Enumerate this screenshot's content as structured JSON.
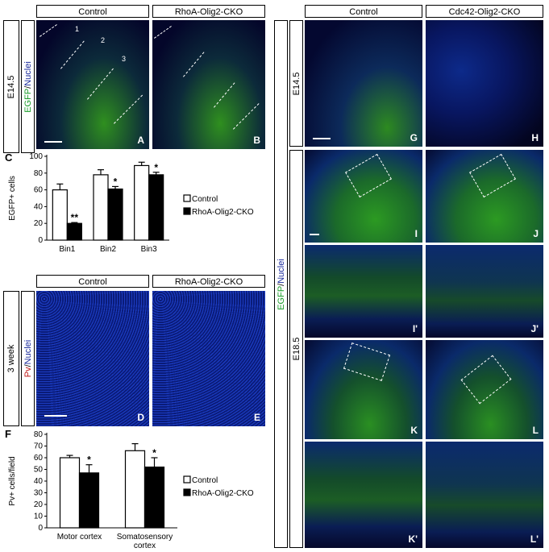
{
  "left_top": {
    "header_control": "Control",
    "header_cko": "RhoA-Olig2-CKO",
    "row_label": "E14.5",
    "stain_egfp": "EGFP",
    "stain_sep": "/",
    "stain_nuclei": "Nuclei",
    "zone_labels": [
      "1",
      "2",
      "3"
    ],
    "panel_A": "A",
    "panel_B": "B"
  },
  "panel_C": {
    "letter": "C",
    "chart_data": {
      "type": "bar",
      "categories": [
        "Bin1",
        "Bin2",
        "Bin3"
      ],
      "series": [
        {
          "name": "Control",
          "values": [
            60,
            78,
            89
          ],
          "errors": [
            7,
            6,
            4
          ],
          "color": "#ffffff"
        },
        {
          "name": "RhoA-Olig2-CKO",
          "values": [
            20,
            61,
            78
          ],
          "errors": [
            1,
            3,
            3
          ],
          "color": "#000000"
        }
      ],
      "significance": [
        "**",
        "*",
        "*"
      ],
      "ylabel": "EGFP+ cells",
      "ylim": [
        0,
        100
      ],
      "yticks": [
        0,
        20,
        40,
        60,
        80,
        100
      ],
      "legend_position": "right"
    }
  },
  "left_mid": {
    "header_control": "Control",
    "header_cko": "RhoA-Olig2-CKO",
    "row_label": "3 week",
    "stain_pv": "Pv",
    "stain_sep": "/",
    "stain_nuclei": "Nuclei",
    "panel_D": "D",
    "panel_E": "E"
  },
  "panel_F": {
    "letter": "F",
    "chart_data": {
      "type": "bar",
      "categories": [
        "Motor cortex",
        "Somatosensory cortex"
      ],
      "category_lines": [
        [
          "Motor cortex"
        ],
        [
          "Somatosensory",
          "cortex"
        ]
      ],
      "series": [
        {
          "name": "Control",
          "values": [
            60,
            66
          ],
          "errors": [
            2,
            6
          ],
          "color": "#ffffff"
        },
        {
          "name": "RhoA-Olig2-CKO",
          "values": [
            47,
            52
          ],
          "errors": [
            7,
            8
          ],
          "color": "#000000"
        }
      ],
      "significance": [
        "*",
        "*"
      ],
      "ylabel": "Pv+ cells/field",
      "ylim": [
        0,
        80
      ],
      "yticks": [
        0,
        10,
        20,
        30,
        40,
        50,
        60,
        70,
        80
      ],
      "legend_position": "right"
    }
  },
  "right": {
    "header_control": "Control",
    "header_cko": "Cdc42-Olig2-CKO",
    "row_label_top": "E14.5",
    "row_label_bottom": "E18.5",
    "stain_egfp": "EGFP",
    "stain_sep": "/",
    "stain_nuclei": "Nuclei",
    "panels": [
      "G",
      "H",
      "I",
      "J",
      "I'",
      "J'",
      "K",
      "L",
      "K'",
      "L'"
    ]
  }
}
